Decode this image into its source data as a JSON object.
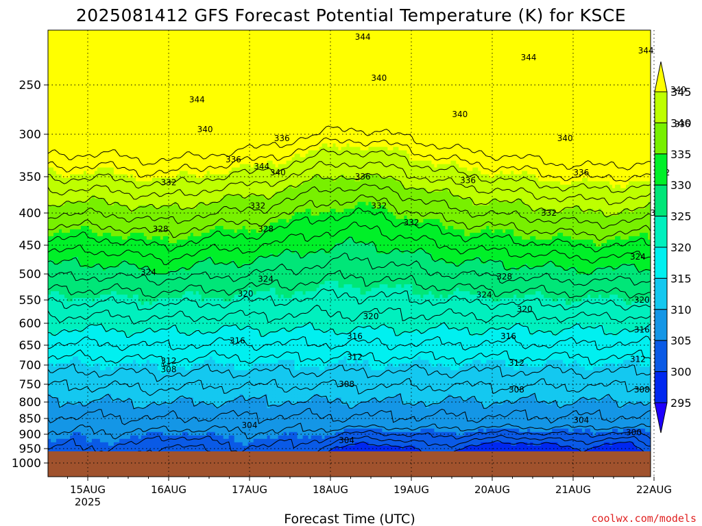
{
  "chart_data": {
    "type": "contour",
    "title": "2025081412 GFS Forecast Potential Temperature (K) for KSCE",
    "xlabel": "Forecast Time (UTC)",
    "ylabel": "",
    "y_scale": "pressure (hPa), reversed, log-like",
    "y_ticks": [
      250,
      300,
      350,
      400,
      450,
      500,
      550,
      600,
      650,
      700,
      750,
      800,
      850,
      900,
      950,
      1000
    ],
    "x_ticks": [
      "15AUG",
      "16AUG",
      "17AUG",
      "18AUG",
      "19AUG",
      "20AUG",
      "21AUG",
      "22AUG"
    ],
    "x_year_label": "2025",
    "grid": true,
    "colorbar": {
      "placement": "right",
      "levels": [
        295,
        300,
        305,
        310,
        315,
        320,
        325,
        330,
        335,
        340,
        345
      ],
      "colors": [
        "#1e00ff",
        "#0028f0",
        "#0a5ae6",
        "#1496e6",
        "#14c8f0",
        "#00f0f0",
        "#00f0be",
        "#00e678",
        "#00f028",
        "#78f000",
        "#beff00",
        "#ffff00"
      ]
    },
    "contour_labels": [
      {
        "x": 1.35,
        "p": 265,
        "value": 344
      },
      {
        "x": 1.45,
        "p": 295,
        "value": 340
      },
      {
        "x": 1.8,
        "p": 330,
        "value": 336
      },
      {
        "x": 1.0,
        "p": 358,
        "value": 332
      },
      {
        "x": 0.9,
        "p": 425,
        "value": 328
      },
      {
        "x": 0.75,
        "p": 497,
        "value": 324
      },
      {
        "x": 1.95,
        "p": 538,
        "value": 320
      },
      {
        "x": 1.85,
        "p": 640,
        "value": 316
      },
      {
        "x": 1.0,
        "p": 690,
        "value": 312
      },
      {
        "x": 1.0,
        "p": 712,
        "value": 308
      },
      {
        "x": 2.0,
        "p": 872,
        "value": 304
      },
      {
        "x": 2.4,
        "p": 305,
        "value": 336
      },
      {
        "x": 2.15,
        "p": 338,
        "value": 344
      },
      {
        "x": 2.35,
        "p": 345,
        "value": 340
      },
      {
        "x": 2.1,
        "p": 390,
        "value": 332
      },
      {
        "x": 2.2,
        "p": 425,
        "value": 328
      },
      {
        "x": 2.2,
        "p": 510,
        "value": 324
      },
      {
        "x": 3.6,
        "p": 240,
        "value": 340
      },
      {
        "x": 3.4,
        "p": 350,
        "value": 336
      },
      {
        "x": 3.6,
        "p": 390,
        "value": 332
      },
      {
        "x": 3.5,
        "p": 585,
        "value": 320
      },
      {
        "x": 3.3,
        "p": 630,
        "value": 316
      },
      {
        "x": 3.3,
        "p": 680,
        "value": 312
      },
      {
        "x": 3.2,
        "p": 750,
        "value": 308
      },
      {
        "x": 3.2,
        "p": 922,
        "value": 304
      },
      {
        "x": 3.4,
        "p": 180,
        "value": 344
      },
      {
        "x": 4.6,
        "p": 280,
        "value": 340
      },
      {
        "x": 4.7,
        "p": 355,
        "value": 336
      },
      {
        "x": 4.0,
        "p": 415,
        "value": 332
      },
      {
        "x": 5.15,
        "p": 505,
        "value": 328
      },
      {
        "x": 4.9,
        "p": 540,
        "value": 324
      },
      {
        "x": 5.4,
        "p": 570,
        "value": 320
      },
      {
        "x": 5.2,
        "p": 630,
        "value": 316
      },
      {
        "x": 5.3,
        "p": 695,
        "value": 312
      },
      {
        "x": 5.3,
        "p": 765,
        "value": 308
      },
      {
        "x": 5.45,
        "p": 210,
        "value": 344
      },
      {
        "x": 5.9,
        "p": 305,
        "value": 340
      },
      {
        "x": 6.1,
        "p": 345,
        "value": 336
      },
      {
        "x": 5.7,
        "p": 400,
        "value": 332
      },
      {
        "x": 6.9,
        "p": 200,
        "value": 344
      },
      {
        "x": 7.3,
        "p": 255,
        "value": 340
      },
      {
        "x": 7.35,
        "p": 290,
        "value": 336
      },
      {
        "x": 7.1,
        "p": 345,
        "value": 332
      },
      {
        "x": 7.05,
        "p": 400,
        "value": 328
      },
      {
        "x": 6.8,
        "p": 470,
        "value": 324
      },
      {
        "x": 6.85,
        "p": 550,
        "value": 320
      },
      {
        "x": 6.85,
        "p": 615,
        "value": 316
      },
      {
        "x": 6.8,
        "p": 685,
        "value": 312
      },
      {
        "x": 6.85,
        "p": 765,
        "value": 308
      },
      {
        "x": 6.1,
        "p": 855,
        "value": 304
      },
      {
        "x": 7.75,
        "p": 820,
        "value": 304
      },
      {
        "x": 6.75,
        "p": 895,
        "value": 300
      }
    ]
  },
  "credit": "coolwx.com/models"
}
